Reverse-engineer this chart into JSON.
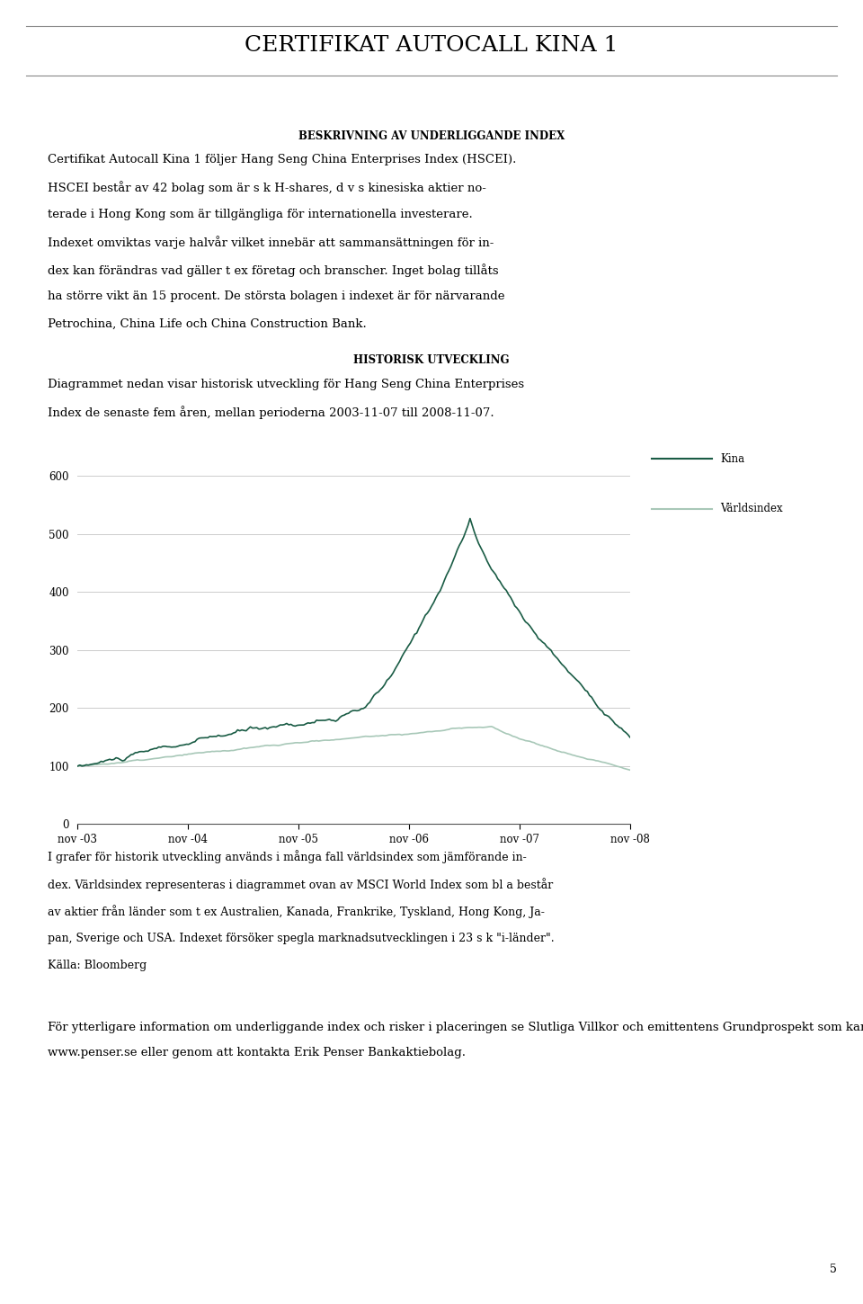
{
  "title": "CERTIFIKAT AUTOCALL KINA 1",
  "bg_color": "#ffffff",
  "text_color": "#000000",
  "section1_heading": "BESKRIVNING AV UNDERLIGGANDE INDEX",
  "section1_lines": [
    "Certifikat Autocall Kina 1 följer Hang Seng China Enterprises Index (HSCEI).",
    "HSCEI består av 42 bolag som är s k H-shares, d v s kinesiska aktier no-",
    "terade i Hong Kong som är tillgängliga för internationella investerare.",
    "Indexet omviktas varje halvår vilket innebär att sammansättningen för in-",
    "dex kan förändras vad gäller t ex företag och branscher. Inget bolag tillåts",
    "ha större vikt än 15 procent. De största bolagen i indexet är för närvarande",
    "Petrochina, China Life och China Construction Bank."
  ],
  "section2_heading": "HISTORISK UTVECKLING",
  "section2_lines": [
    "Diagrammet nedan visar historisk utveckling för Hang Seng China Enterprises",
    "Index de senaste fem åren, mellan perioderna 2003-11-07 till 2008-11-07."
  ],
  "chart": {
    "yticks": [
      0,
      100,
      200,
      300,
      400,
      500,
      600
    ],
    "xtick_labels": [
      "nov -03",
      "nov -04",
      "nov -05",
      "nov -06",
      "nov -07",
      "nov -08"
    ],
    "kina_color": "#1a5c45",
    "varldsindex_color": "#a8c8b8",
    "legend_kina": "Kina",
    "legend_varldsindex": "Världsindex",
    "ylim": [
      0,
      640
    ],
    "xlim": [
      0,
      260
    ]
  },
  "section3_lines": [
    "I grafer för historik utveckling används i många fall världsindex som jämförande in-",
    "dex. Världsindex representeras i diagrammet ovan av MSCI World Index som bl a består",
    "av aktier från länder som t ex Australien, Kanada, Frankrike, Tyskland, Hong Kong, Ja-",
    "pan, Sverige och USA. Indexet försöker spegla marknadsutvecklingen i 23 s k \"i-länder\".",
    "Källa: Bloomberg"
  ],
  "section4_lines": [
    "För ytterligare information om underliggande index och risker i placeringen se Slutliga Villkor och emittentens Grundprospekt som kan erhållas via",
    "www.penser.se eller genom att kontakta Erik Penser Bankaktiebolag."
  ],
  "page_number": "5",
  "title_line_color": "#888888",
  "grid_color": "#cccccc",
  "spine_color": "#555555"
}
